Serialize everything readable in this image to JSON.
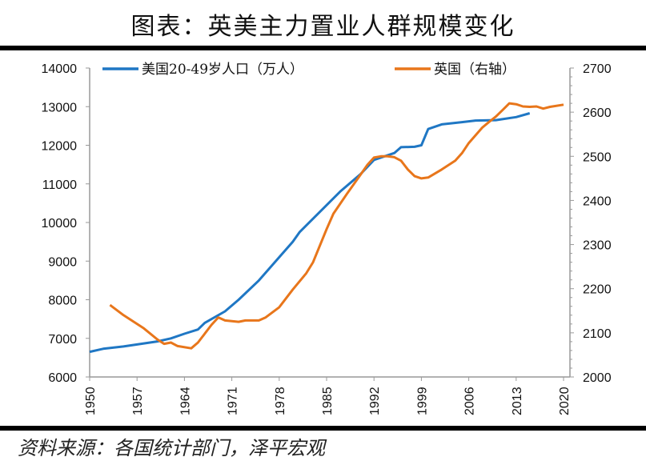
{
  "title": "图表：英美主力置业人群规模变化",
  "source": "资料来源：各国统计部门，泽平宏观",
  "chart_data": {
    "type": "line",
    "title": "图表：英美主力置业人群规模变化",
    "xlabel": "",
    "ylabel": "",
    "y2label": "",
    "x_ticks": [
      "1950",
      "1957",
      "1964",
      "1971",
      "1978",
      "1985",
      "1992",
      "1999",
      "2006",
      "2013",
      "2020"
    ],
    "xlim": [
      1950,
      2020
    ],
    "ylim": [
      6000,
      14000
    ],
    "y_ticks": [
      6000,
      7000,
      8000,
      9000,
      10000,
      11000,
      12000,
      13000,
      14000
    ],
    "y2lim": [
      2000,
      2700
    ],
    "y2_ticks": [
      2000,
      2100,
      2200,
      2300,
      2400,
      2500,
      2600,
      2700
    ],
    "grid": false,
    "legend": "top",
    "series": [
      {
        "name": "美国20-49岁人口（万人）",
        "axis": "left",
        "color": "#1f77c4",
        "x": [
          1950,
          1952,
          1955,
          1960,
          1962,
          1964,
          1966,
          1967,
          1970,
          1972,
          1975,
          1978,
          1980,
          1981,
          1985,
          1987,
          1990,
          1992,
          1995,
          1996,
          1998,
          1999,
          2000,
          2002,
          2005,
          2007,
          2010,
          2013,
          2015
        ],
        "y": [
          6650,
          6730,
          6790,
          6920,
          7000,
          7120,
          7230,
          7400,
          7700,
          8000,
          8500,
          9100,
          9500,
          9750,
          10450,
          10800,
          11250,
          11620,
          11800,
          11950,
          11960,
          12000,
          12420,
          12540,
          12600,
          12640,
          12650,
          12730,
          12830
        ]
      },
      {
        "name": "英国（右轴）",
        "axis": "right",
        "color": "#e8761b",
        "x": [
          1953,
          1955,
          1958,
          1960,
          1961,
          1962,
          1963,
          1965,
          1966,
          1968,
          1969,
          1970,
          1972,
          1973,
          1975,
          1976,
          1978,
          1980,
          1982,
          1983,
          1985,
          1986,
          1988,
          1990,
          1991,
          1992,
          1993,
          1994,
          1995,
          1996,
          1997,
          1998,
          1999,
          2000,
          2002,
          2004,
          2005,
          2006,
          2008,
          2009,
          2010,
          2011,
          2012,
          2013,
          2014,
          2015,
          2016,
          2017,
          2018,
          2020
        ],
        "y": [
          2163,
          2140,
          2110,
          2085,
          2075,
          2078,
          2070,
          2065,
          2078,
          2118,
          2135,
          2128,
          2125,
          2128,
          2128,
          2135,
          2158,
          2198,
          2235,
          2260,
          2335,
          2370,
          2415,
          2458,
          2480,
          2497,
          2500,
          2500,
          2498,
          2490,
          2470,
          2455,
          2450,
          2452,
          2470,
          2490,
          2507,
          2530,
          2565,
          2578,
          2590,
          2605,
          2620,
          2618,
          2613,
          2612,
          2613,
          2608,
          2612,
          2617
        ]
      }
    ]
  }
}
